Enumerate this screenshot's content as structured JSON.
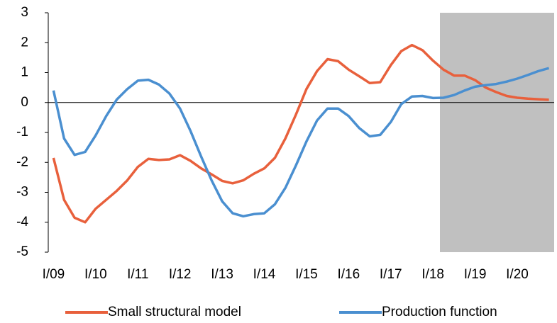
{
  "chart_data": {
    "type": "line",
    "categories": [
      "I/09",
      null,
      null,
      null,
      "I/10",
      null,
      null,
      null,
      "I/11",
      null,
      null,
      null,
      "I/12",
      null,
      null,
      null,
      "I/13",
      null,
      null,
      null,
      "I/14",
      null,
      null,
      null,
      "I/15",
      null,
      null,
      null,
      "I/16",
      null,
      null,
      null,
      "I/17",
      null,
      null,
      null,
      "I/18",
      null,
      null,
      null,
      "I/19",
      null,
      null,
      null,
      "I/20",
      null,
      null,
      null
    ],
    "series": [
      {
        "name": "Small structural model",
        "color": "#e8603c",
        "values": [
          -1.85,
          -3.25,
          -3.85,
          -4.0,
          -3.55,
          -3.25,
          -2.95,
          -2.6,
          -2.15,
          -1.88,
          -1.92,
          -1.9,
          -1.76,
          -1.95,
          -2.2,
          -2.4,
          -2.62,
          -2.7,
          -2.6,
          -2.38,
          -2.2,
          -1.85,
          -1.2,
          -0.4,
          0.45,
          1.05,
          1.45,
          1.38,
          1.1,
          0.88,
          0.65,
          0.68,
          1.25,
          1.72,
          1.92,
          1.75,
          1.4,
          1.1,
          0.9,
          0.9,
          0.75,
          0.5,
          0.35,
          0.22,
          0.16,
          0.13,
          0.11,
          0.09
        ]
      },
      {
        "name": "Production function",
        "color": "#4a8fd0",
        "values": [
          0.4,
          -1.2,
          -1.75,
          -1.65,
          -1.1,
          -0.45,
          0.1,
          0.45,
          0.73,
          0.76,
          0.6,
          0.3,
          -0.2,
          -0.95,
          -1.8,
          -2.6,
          -3.3,
          -3.7,
          -3.8,
          -3.73,
          -3.7,
          -3.4,
          -2.85,
          -2.1,
          -1.3,
          -0.6,
          -0.2,
          -0.2,
          -0.45,
          -0.85,
          -1.13,
          -1.08,
          -0.65,
          -0.05,
          0.2,
          0.22,
          0.15,
          0.16,
          0.25,
          0.4,
          0.53,
          0.58,
          0.62,
          0.7,
          0.8,
          0.92,
          1.05,
          1.15
        ]
      }
    ],
    "ylim": [
      -5,
      3
    ],
    "yticks": [
      -5,
      -4,
      -3,
      -2,
      -1,
      0,
      1,
      2,
      3
    ]
  }
}
